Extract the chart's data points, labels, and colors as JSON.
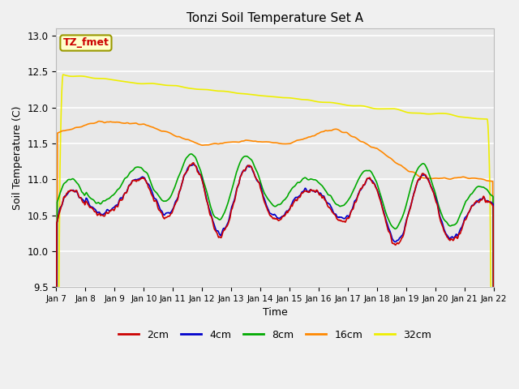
{
  "title": "Tonzi Soil Temperature Set A",
  "xlabel": "Time",
  "ylabel": "Soil Temperature (C)",
  "ylim": [
    9.5,
    13.1
  ],
  "background_color": "#f0f0f0",
  "plot_bg_color": "#e8e8e8",
  "colors": {
    "2cm": "#cc0000",
    "4cm": "#0000cc",
    "8cm": "#00aa00",
    "16cm": "#ff8800",
    "32cm": "#eeee00"
  },
  "legend_label": "TZ_fmet",
  "legend_box_color": "#ffffcc",
  "legend_box_edge": "#999900",
  "tick_labels": [
    "Jan 7",
    "Jan 8",
    "Jan 9",
    "Jan 10",
    "Jan 11",
    "Jan 12",
    "Jan 13",
    "Jan 14",
    "Jan 15",
    "Jan 16",
    "Jan 17",
    "Jan 18",
    "Jan 19",
    "Jan 20",
    "Jan 21",
    "Jan 22"
  ],
  "yticks": [
    9.5,
    10.0,
    10.5,
    11.0,
    11.5,
    12.0,
    12.5,
    13.0
  ],
  "n_days": 15,
  "pts_per_day": 96
}
